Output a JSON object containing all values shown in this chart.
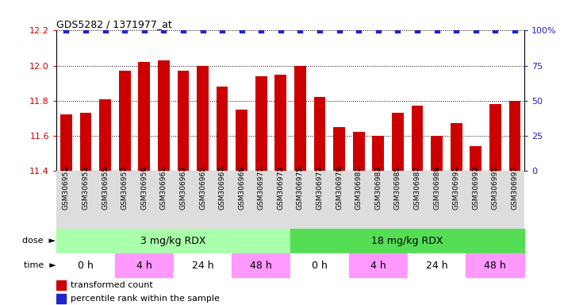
{
  "title": "GDS5282 / 1371977_at",
  "samples": [
    "GSM306951",
    "GSM306953",
    "GSM306955",
    "GSM306957",
    "GSM306959",
    "GSM306961",
    "GSM306963",
    "GSM306965",
    "GSM306967",
    "GSM306969",
    "GSM306971",
    "GSM306973",
    "GSM306975",
    "GSM306977",
    "GSM306979",
    "GSM306981",
    "GSM306983",
    "GSM306985",
    "GSM306987",
    "GSM306989",
    "GSM306991",
    "GSM306993",
    "GSM306995",
    "GSM306997"
  ],
  "bar_values": [
    11.72,
    11.73,
    11.81,
    11.97,
    12.02,
    12.03,
    11.97,
    12.0,
    11.88,
    11.75,
    11.94,
    11.95,
    12.0,
    11.82,
    11.65,
    11.62,
    11.6,
    11.73,
    11.77,
    11.6,
    11.67,
    11.54,
    11.78,
    11.8
  ],
  "bar_color": "#cc0000",
  "percentile_color": "#2222cc",
  "ylim_left": [
    11.4,
    12.2
  ],
  "ylim_right": [
    0,
    100
  ],
  "yticks_left": [
    11.4,
    11.6,
    11.8,
    12.0,
    12.2
  ],
  "yticks_right": [
    0,
    25,
    50,
    75,
    100
  ],
  "dose_labels": [
    "3 mg/kg RDX",
    "18 mg/kg RDX"
  ],
  "dose_colors": [
    "#aaffaa",
    "#66dd66"
  ],
  "time_segments": [
    {
      "label": "0 h",
      "xstart": -0.5,
      "xend": 2.5,
      "color": "#ffffff"
    },
    {
      "label": "4 h",
      "xstart": 2.5,
      "xend": 5.5,
      "color": "#ff99ff"
    },
    {
      "label": "24 h",
      "xstart": 5.5,
      "xend": 8.5,
      "color": "#ffffff"
    },
    {
      "label": "48 h",
      "xstart": 8.5,
      "xend": 11.5,
      "color": "#ff99ff"
    },
    {
      "label": "0 h",
      "xstart": 11.5,
      "xend": 14.5,
      "color": "#ffffff"
    },
    {
      "label": "4 h",
      "xstart": 14.5,
      "xend": 17.5,
      "color": "#ff99ff"
    },
    {
      "label": "24 h",
      "xstart": 17.5,
      "xend": 20.5,
      "color": "#ffffff"
    },
    {
      "label": "48 h",
      "xstart": 20.5,
      "xend": 23.5,
      "color": "#ff99ff"
    }
  ],
  "legend_items": [
    {
      "label": "transformed count",
      "color": "#cc0000"
    },
    {
      "label": "percentile rank within the sample",
      "color": "#2222cc"
    }
  ],
  "n_samples": 24
}
